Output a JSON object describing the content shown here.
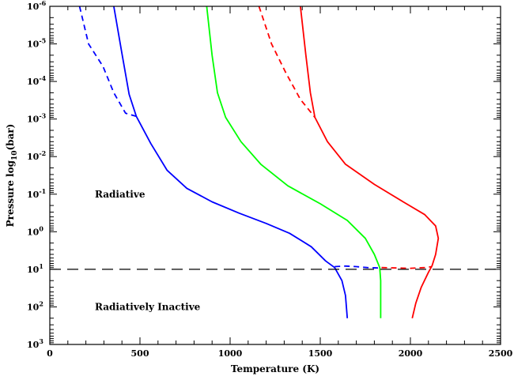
{
  "chart_data": {
    "type": "line",
    "xlabel": "Temperature (K)",
    "ylabel": "Pressure log",
    "ylabel_sub": "10",
    "ylabel_unit": "(bar)",
    "xlim": [
      0,
      2500
    ],
    "ylim": [
      1e-06,
      1000
    ],
    "yscale": "log",
    "y_inverted": true,
    "grid": false,
    "x_ticks": [
      0,
      500,
      1000,
      1500,
      2000,
      2500
    ],
    "x_tick_labels": [
      "0",
      "500",
      "1000",
      "1500",
      "2000",
      "2500"
    ],
    "y_ticks": [
      {
        "value": 1e-06,
        "base": "10",
        "exp": "-6"
      },
      {
        "value": 1e-05,
        "base": "10",
        "exp": "-5"
      },
      {
        "value": 0.0001,
        "base": "10",
        "exp": "-4"
      },
      {
        "value": 0.001,
        "base": "10",
        "exp": "-3"
      },
      {
        "value": 0.01,
        "base": "10",
        "exp": "-2"
      },
      {
        "value": 0.1,
        "base": "10",
        "exp": "-1"
      },
      {
        "value": 1,
        "base": "10",
        "exp": "0"
      },
      {
        "value": 10,
        "base": "10",
        "exp": "1"
      },
      {
        "value": 100,
        "base": "10",
        "exp": "2"
      },
      {
        "value": 1000,
        "base": "10",
        "exp": "3"
      }
    ],
    "annotations": [
      {
        "text": "Radiative",
        "x": 250,
        "y": 0.1
      },
      {
        "text": "Radiatively Inactive",
        "x": 250,
        "y": 100
      }
    ],
    "hline": {
      "y": 10,
      "style": "dashed",
      "color": "#000000"
    },
    "series": [
      {
        "color": "#0000ff",
        "dash": false,
        "points": [
          [
            355,
            1e-06
          ],
          [
            400,
            1.8e-05
          ],
          [
            440,
            0.00022
          ],
          [
            480,
            0.00085
          ],
          [
            560,
            0.0045
          ],
          [
            650,
            0.023
          ],
          [
            760,
            0.07
          ],
          [
            900,
            0.16
          ],
          [
            1050,
            0.32
          ],
          [
            1200,
            0.6
          ],
          [
            1330,
            1.1
          ],
          [
            1450,
            2.5
          ],
          [
            1530,
            6
          ],
          [
            1580,
            9
          ],
          [
            1620,
            20
          ],
          [
            1640,
            50
          ],
          [
            1650,
            200
          ]
        ]
      },
      {
        "color": "#0000ff",
        "dash": true,
        "points": [
          [
            165,
            1e-06
          ],
          [
            215,
            1e-05
          ],
          [
            295,
            4e-05
          ],
          [
            355,
            0.0002
          ],
          [
            420,
            0.0007
          ],
          [
            480,
            0.00085
          ]
        ]
      },
      {
        "color": "#0000ff",
        "dash": true,
        "points": [
          [
            1580,
            8.5
          ],
          [
            1640,
            8.2
          ],
          [
            1700,
            8.5
          ],
          [
            1760,
            9
          ],
          [
            1820,
            9.2
          ]
        ]
      },
      {
        "color": "#00ff00",
        "dash": false,
        "points": [
          [
            870,
            1e-06
          ],
          [
            900,
            2e-05
          ],
          [
            930,
            0.0002
          ],
          [
            975,
            0.0009
          ],
          [
            1060,
            0.004
          ],
          [
            1170,
            0.016
          ],
          [
            1320,
            0.06
          ],
          [
            1500,
            0.18
          ],
          [
            1650,
            0.5
          ],
          [
            1750,
            1.5
          ],
          [
            1800,
            4
          ],
          [
            1830,
            9
          ],
          [
            1835,
            20
          ],
          [
            1835,
            200
          ]
        ]
      },
      {
        "color": "#ff0000",
        "dash": false,
        "points": [
          [
            1390,
            1e-06
          ],
          [
            1420,
            2e-05
          ],
          [
            1445,
            0.0002
          ],
          [
            1470,
            0.0009
          ],
          [
            1540,
            0.004
          ],
          [
            1640,
            0.016
          ],
          [
            1800,
            0.055
          ],
          [
            1960,
            0.16
          ],
          [
            2080,
            0.35
          ],
          [
            2140,
            0.7
          ],
          [
            2155,
            1.5
          ],
          [
            2140,
            4
          ],
          [
            2120,
            8
          ],
          [
            2100,
            12
          ],
          [
            2060,
            30
          ],
          [
            2030,
            80
          ],
          [
            2010,
            200
          ]
        ]
      },
      {
        "color": "#ff0000",
        "dash": true,
        "points": [
          [
            1160,
            1e-06
          ],
          [
            1230,
            1e-05
          ],
          [
            1310,
            6e-05
          ],
          [
            1390,
            0.0003
          ],
          [
            1470,
            0.0009
          ]
        ]
      },
      {
        "color": "#ff0000",
        "dash": true,
        "points": [
          [
            1840,
            9
          ],
          [
            1920,
            9.2
          ],
          [
            2000,
            9.4
          ],
          [
            2080,
            9
          ],
          [
            2120,
            8.5
          ]
        ]
      }
    ]
  }
}
